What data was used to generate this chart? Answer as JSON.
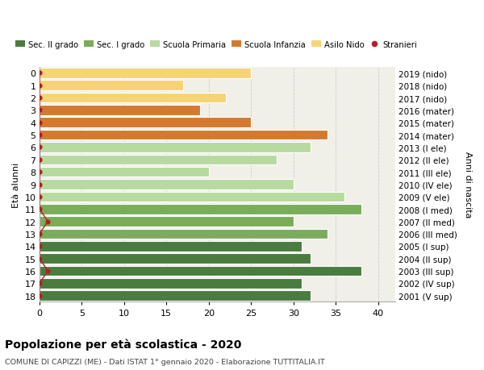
{
  "ages": [
    0,
    1,
    2,
    3,
    4,
    5,
    6,
    7,
    8,
    9,
    10,
    11,
    12,
    13,
    14,
    15,
    16,
    17,
    18
  ],
  "years": [
    "2019 (nido)",
    "2018 (nido)",
    "2017 (nido)",
    "2016 (mater)",
    "2015 (mater)",
    "2014 (mater)",
    "2013 (I ele)",
    "2012 (II ele)",
    "2011 (III ele)",
    "2010 (IV ele)",
    "2009 (V ele)",
    "2008 (I med)",
    "2007 (II med)",
    "2006 (III med)",
    "2005 (I sup)",
    "2004 (II sup)",
    "2003 (III sup)",
    "2002 (IV sup)",
    "2001 (V sup)"
  ],
  "values": [
    25,
    17,
    22,
    19,
    25,
    34,
    32,
    28,
    20,
    30,
    36,
    38,
    30,
    34,
    31,
    32,
    38,
    31,
    32
  ],
  "stranieri": [
    0,
    0,
    0,
    0,
    0,
    0,
    0,
    0,
    0,
    0,
    0,
    0,
    1,
    0,
    0,
    0,
    1,
    0,
    0
  ],
  "bar_colors": [
    "#f5d478",
    "#f5d478",
    "#f5d478",
    "#d47a30",
    "#d47a30",
    "#d47a30",
    "#b8d9a0",
    "#b8d9a0",
    "#b8d9a0",
    "#b8d9a0",
    "#b8d9a0",
    "#7aac5c",
    "#7aac5c",
    "#7aac5c",
    "#4a7c3f",
    "#4a7c3f",
    "#4a7c3f",
    "#4a7c3f",
    "#4a7c3f"
  ],
  "legend_labels": [
    "Sec. II grado",
    "Sec. I grado",
    "Scuola Primaria",
    "Scuola Infanzia",
    "Asilo Nido",
    "Stranieri"
  ],
  "legend_colors": [
    "#4a7c3f",
    "#7aac5c",
    "#b8d9a0",
    "#d47a30",
    "#f5d478",
    "#b22222"
  ],
  "title": "Popolazione per età scolastica - 2020",
  "subtitle": "COMUNE DI CAPIZZI (ME) - Dati ISTAT 1° gennaio 2020 - Elaborazione TUTTITALIA.IT",
  "ylabel_left": "Età alunni",
  "ylabel_right": "Anni di nascita",
  "xlim": [
    0,
    42
  ],
  "xticks": [
    0,
    5,
    10,
    15,
    20,
    25,
    30,
    35,
    40
  ],
  "background_color": "#ffffff",
  "axes_bg_color": "#f0f0e8",
  "grid_color": "#cccccc",
  "stranieri_color": "#b22222",
  "bar_height": 0.82,
  "figsize": [
    6.0,
    4.6
  ],
  "dpi": 100
}
